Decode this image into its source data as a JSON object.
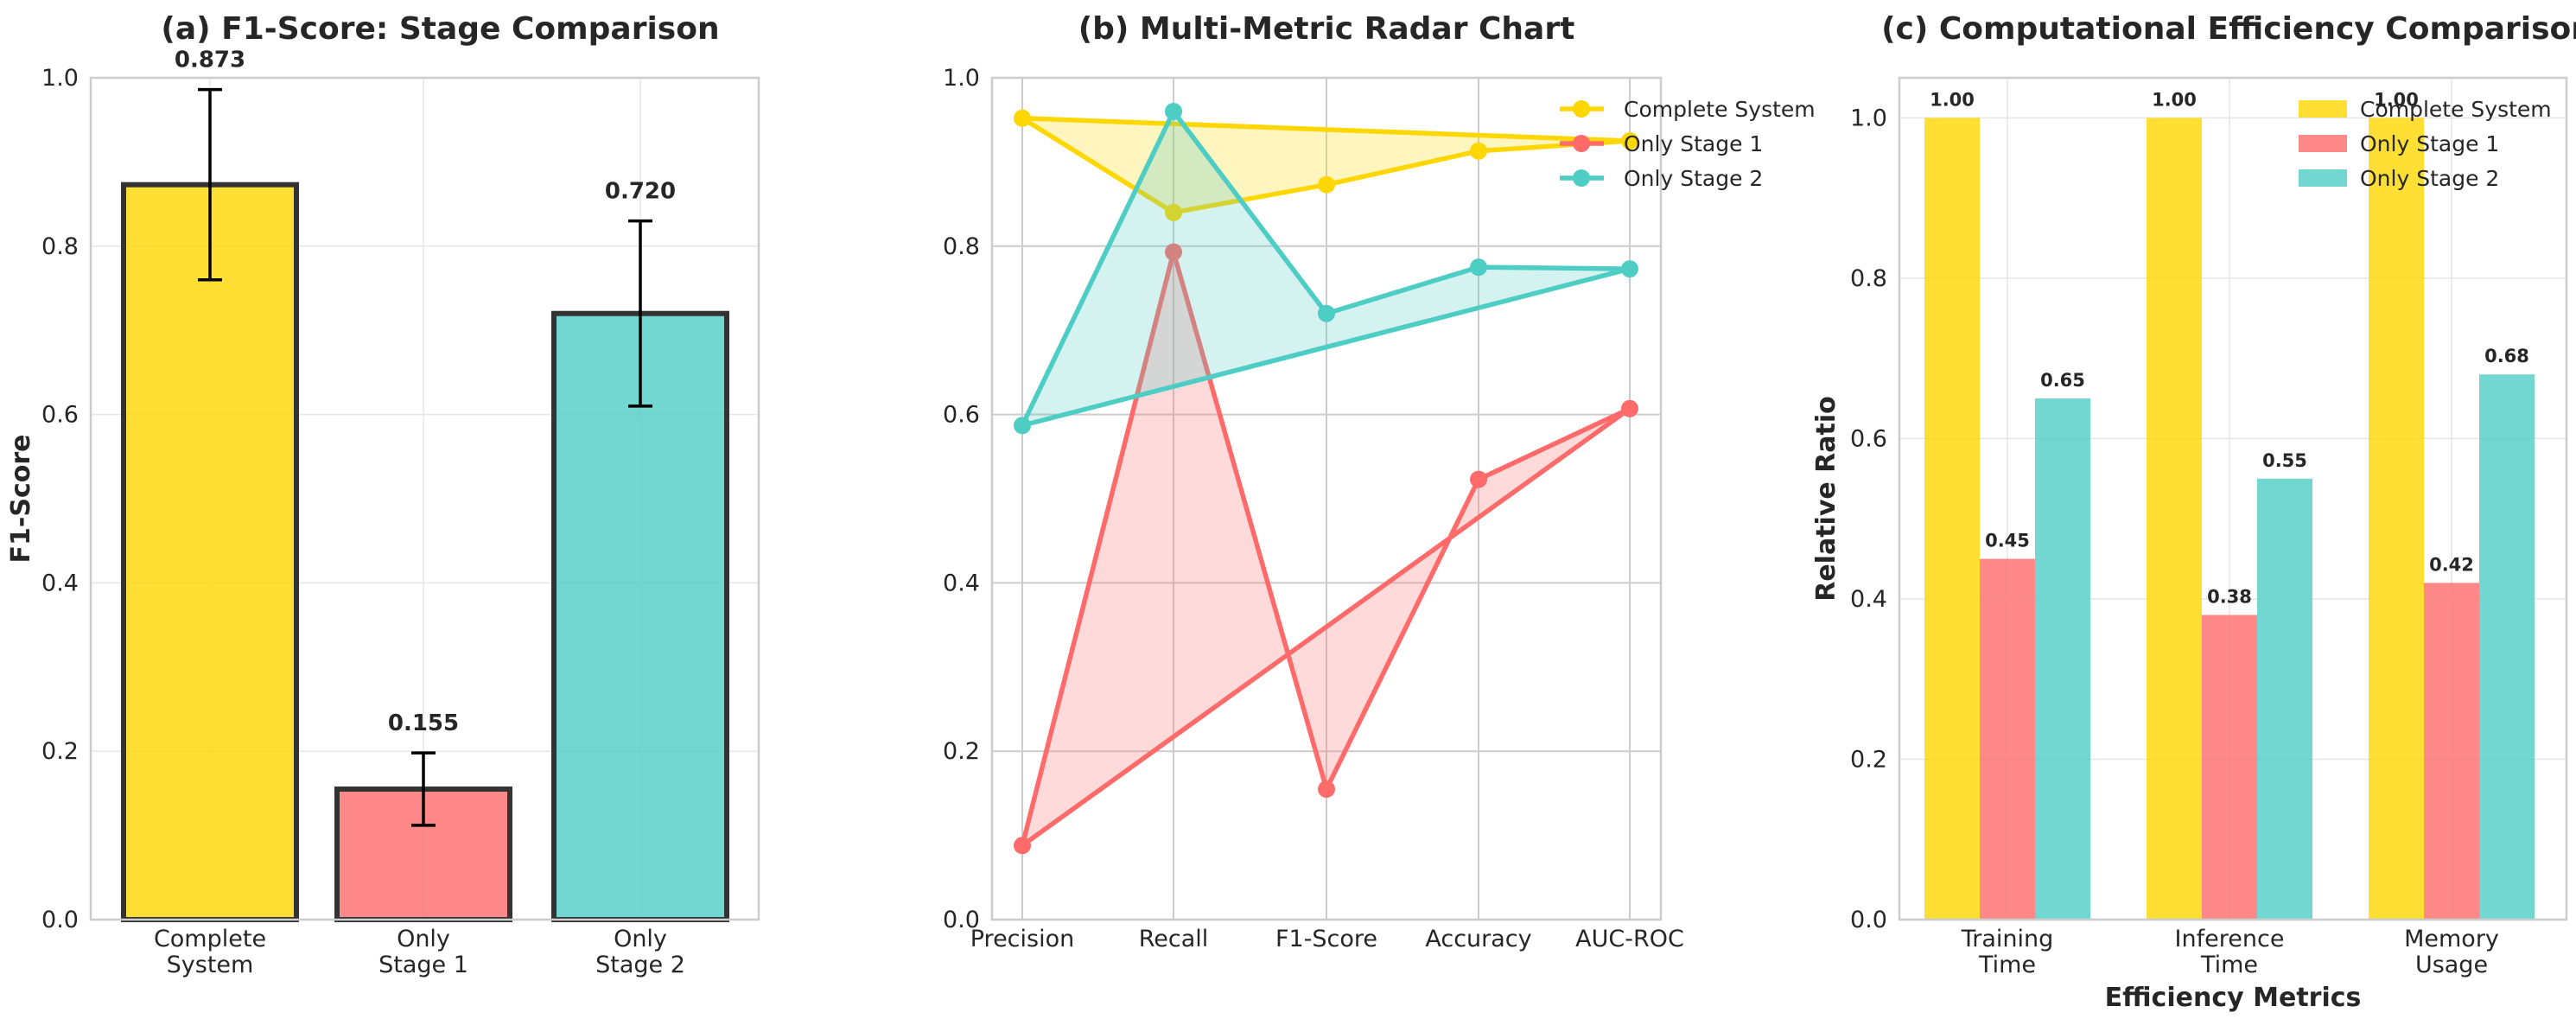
{
  "chart_data": [
    {
      "type": "bar",
      "title": "(a) F1-Score: Stage Comparison",
      "xlabel": "",
      "ylabel": "F1-Score",
      "ylim": [
        0,
        1.0
      ],
      "yticks": [
        "0.0",
        "0.2",
        "0.4",
        "0.6",
        "0.8",
        "1.0"
      ],
      "categories": [
        [
          "Complete",
          "System"
        ],
        [
          "Only",
          "Stage 1"
        ],
        [
          "Only",
          "Stage 2"
        ]
      ],
      "values": [
        0.873,
        0.155,
        0.72
      ],
      "errors": [
        0.113,
        0.043,
        0.11
      ],
      "value_labels": [
        "0.873",
        "0.155",
        "0.720"
      ],
      "colors": [
        "#FFD700",
        "#FF6B6B",
        "#4ECDC4"
      ],
      "grid": true
    },
    {
      "type": "line",
      "title": "(b) Multi-Metric Radar Chart",
      "xlabel": "",
      "ylabel": "",
      "ylim": [
        0,
        1.0
      ],
      "yticks": [
        "0.0",
        "0.2",
        "0.4",
        "0.6",
        "0.8",
        "1.0"
      ],
      "categories": [
        "Precision",
        "Recall",
        "F1-Score",
        "Accuracy",
        "AUC-ROC"
      ],
      "series": [
        {
          "name": "Complete System",
          "values": [
            0.952,
            0.84,
            0.873,
            0.913,
            0.925
          ],
          "color": "#FFD700"
        },
        {
          "name": "Only Stage 1",
          "values": [
            0.088,
            0.793,
            0.155,
            0.523,
            0.607
          ],
          "color": "#FF6B6B"
        },
        {
          "name": "Only Stage 2",
          "values": [
            0.587,
            0.96,
            0.72,
            0.775,
            0.773
          ],
          "color": "#4ECDC4"
        }
      ],
      "legend": "top-right",
      "grid": true
    },
    {
      "type": "bar",
      "title": "(c) Computational Efficiency Comparison",
      "xlabel": "Efficiency Metrics",
      "ylabel": "Relative Ratio",
      "ylim": [
        0,
        1.05
      ],
      "yticks": [
        "0.0",
        "0.2",
        "0.4",
        "0.6",
        "0.8",
        "1.0"
      ],
      "categories": [
        [
          "Training",
          "Time"
        ],
        [
          "Inference",
          "Time"
        ],
        [
          "Memory",
          "Usage"
        ]
      ],
      "series": [
        {
          "name": "Complete System",
          "values": [
            1.0,
            1.0,
            1.0
          ],
          "labels": [
            "1.00",
            "1.00",
            "1.00"
          ],
          "color": "#FFD700"
        },
        {
          "name": "Only Stage 1",
          "values": [
            0.45,
            0.38,
            0.42
          ],
          "labels": [
            "0.45",
            "0.38",
            "0.42"
          ],
          "color": "#FF6B6B"
        },
        {
          "name": "Only Stage 2",
          "values": [
            0.65,
            0.55,
            0.68
          ],
          "labels": [
            "0.65",
            "0.55",
            "0.68"
          ],
          "color": "#4ECDC4"
        }
      ],
      "legend": "top-right",
      "grid": true
    }
  ]
}
